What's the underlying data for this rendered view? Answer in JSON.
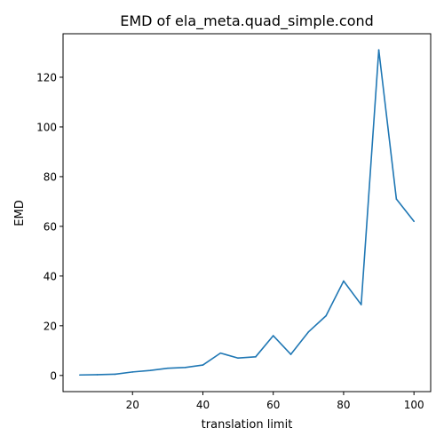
{
  "chart_data": {
    "type": "line",
    "title": "EMD of ela_meta.quad_simple.cond",
    "xlabel": "translation limit",
    "ylabel": "EMD",
    "xlim": [
      0.25,
      104.75
    ],
    "ylim": [
      -6.5,
      137.5
    ],
    "xticks": [
      20,
      40,
      60,
      80,
      100
    ],
    "yticks": [
      0,
      20,
      40,
      60,
      80,
      100,
      120
    ],
    "grid": false,
    "line_color": "#1f77b4",
    "series": [
      {
        "x": [
          5,
          10,
          15,
          20,
          25,
          30,
          35,
          40,
          45,
          50,
          55,
          60,
          65,
          70,
          75,
          80,
          85,
          90,
          95,
          100
        ],
        "values": [
          0.2,
          0.3,
          0.5,
          1.4,
          2.0,
          2.9,
          3.2,
          4.2,
          9.0,
          7.0,
          7.5,
          16.0,
          8.5,
          17.5,
          24.0,
          38.0,
          28.5,
          131.0,
          71.0,
          62.0
        ]
      }
    ]
  }
}
